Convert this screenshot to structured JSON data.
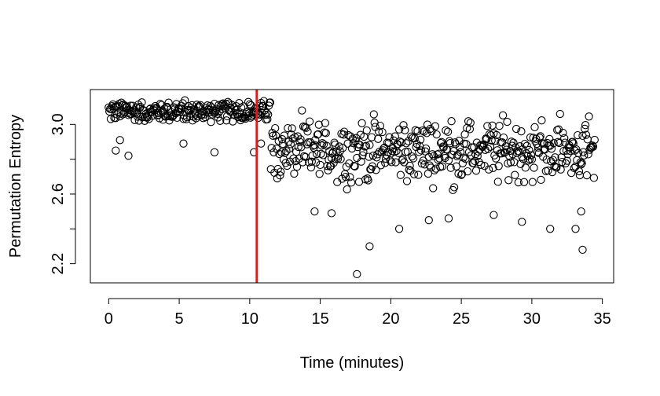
{
  "chart_data": {
    "type": "scatter",
    "title": "",
    "xlabel": "Time (minutes)",
    "ylabel": "Permutation Entropy",
    "xlim": [
      -1.3,
      35.8
    ],
    "ylim": [
      2.09,
      3.2
    ],
    "x_ticks": [
      0,
      5,
      10,
      15,
      20,
      25,
      30,
      35
    ],
    "y_ticks": [
      2.2,
      2.6,
      3.0
    ],
    "x_ticks_minor": [],
    "y_ticks_unlabeled": [
      2.4,
      2.8
    ],
    "marker": "open-circle",
    "grid": false,
    "legend": "none",
    "vertical_line": {
      "x": 10.5,
      "color": "#e31a1c"
    },
    "point_spacing_minutes": 0.05,
    "duration_minutes": 34.5,
    "phases": [
      {
        "x_range": [
          0,
          11.5
        ],
        "typical_range": [
          2.98,
          3.15
        ],
        "outliers": [
          [
            0.5,
            2.85
          ],
          [
            0.8,
            2.91
          ],
          [
            1.4,
            2.82
          ],
          [
            5.3,
            2.89
          ],
          [
            7.5,
            2.84
          ],
          [
            10.3,
            2.84
          ],
          [
            10.8,
            2.89
          ]
        ]
      },
      {
        "x_range": [
          11.5,
          34.5
        ],
        "typical_range": [
          2.6,
          3.1
        ],
        "outliers": [
          [
            14.6,
            2.5
          ],
          [
            15.8,
            2.49
          ],
          [
            18.5,
            2.3
          ],
          [
            17.6,
            2.14
          ],
          [
            20.6,
            2.4
          ],
          [
            22.7,
            2.45
          ],
          [
            24.1,
            2.46
          ],
          [
            27.3,
            2.48
          ],
          [
            29.3,
            2.44
          ],
          [
            31.3,
            2.4
          ],
          [
            33.1,
            2.4
          ],
          [
            33.6,
            2.28
          ],
          [
            33.5,
            2.5
          ]
        ]
      }
    ]
  }
}
